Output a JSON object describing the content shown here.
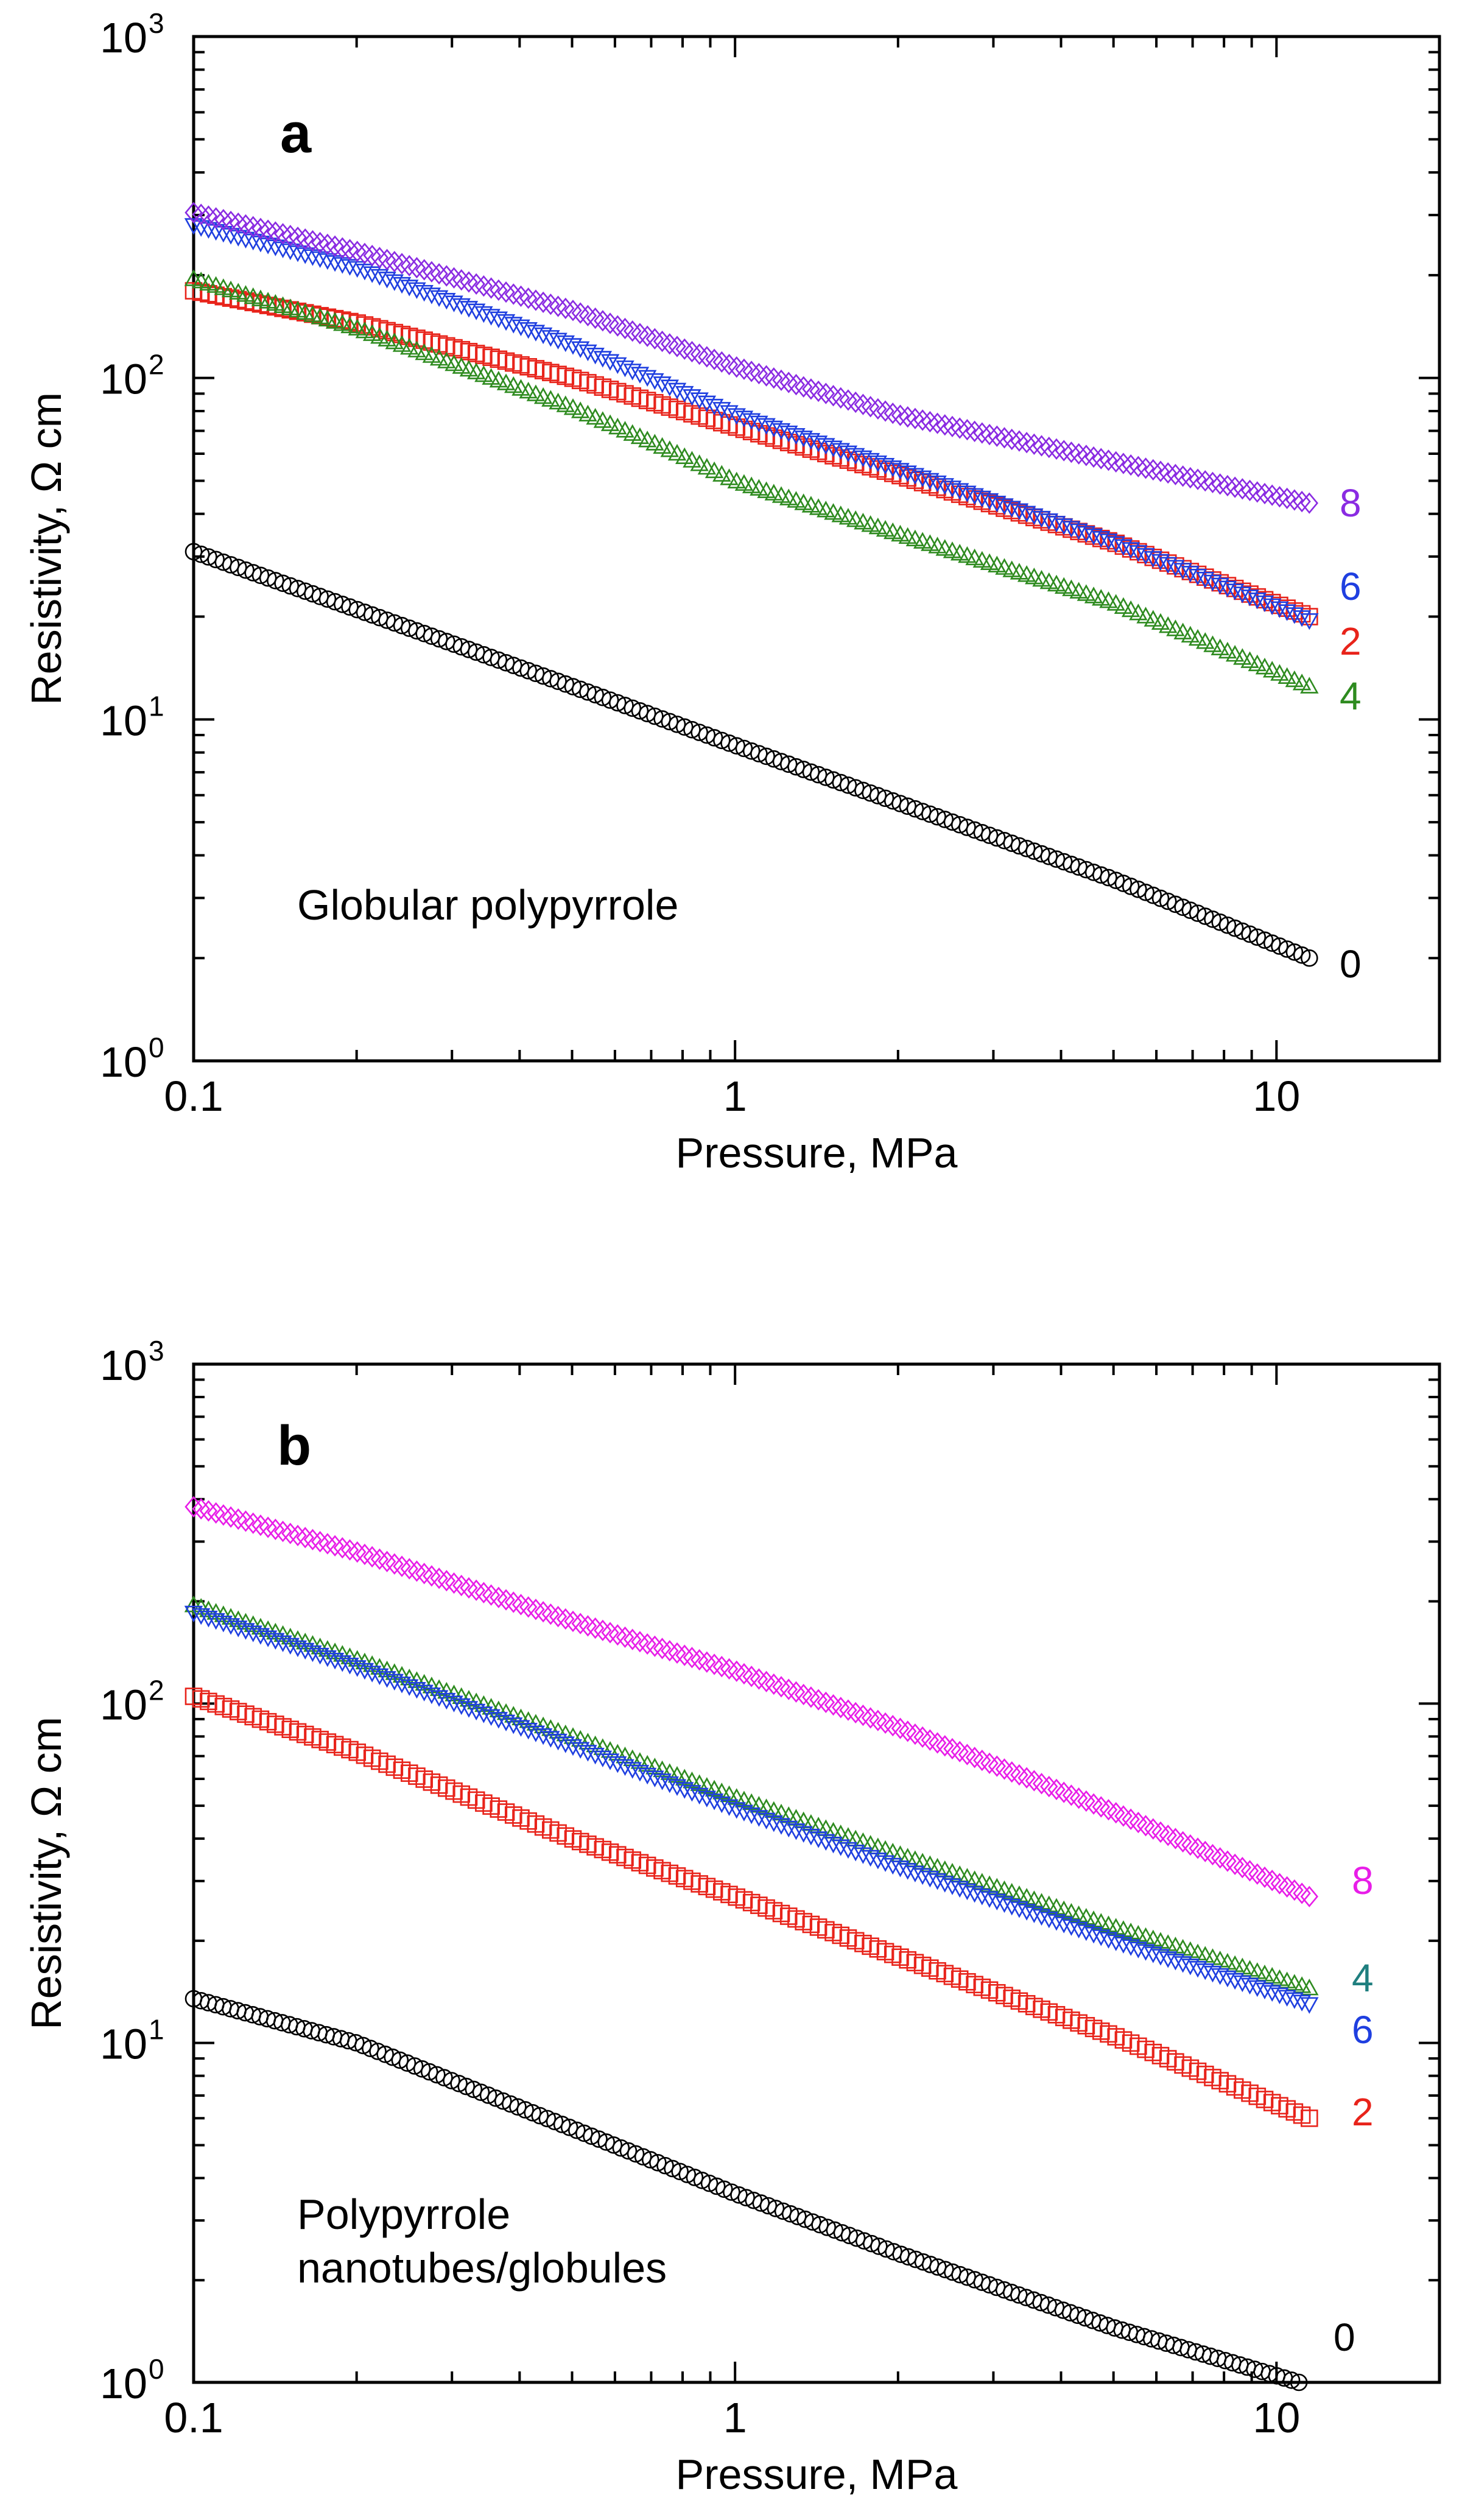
{
  "chart_data": [
    {
      "type": "scatter",
      "panel": "a",
      "title": "",
      "annotation": "Globular polypyrrole",
      "xlabel": "Pressure, MPa",
      "ylabel": "Resistivity, Ω cm",
      "xscale": "log",
      "yscale": "log",
      "xlim": [
        0.1,
        20
      ],
      "ylim": [
        1,
        1000
      ],
      "x_ticks": [
        {
          "value": 0.1,
          "label": "0.1"
        },
        {
          "value": 1,
          "label": "1"
        },
        {
          "value": 10,
          "label": "10"
        }
      ],
      "y_ticks": [
        {
          "value": 1,
          "base": "10",
          "exp": "0"
        },
        {
          "value": 10,
          "base": "10",
          "exp": "1"
        },
        {
          "value": 100,
          "base": "10",
          "exp": "2"
        },
        {
          "value": 1000,
          "base": "10",
          "exp": "3"
        }
      ],
      "grid": false,
      "series": [
        {
          "name": "0",
          "label": "0",
          "color": "#000000",
          "marker": "circle",
          "x": [
            0.1,
            0.2,
            0.5,
            1,
            2,
            5,
            11.5
          ],
          "y": [
            31,
            21,
            12.5,
            8.4,
            5.7,
            3.4,
            2.0
          ]
        },
        {
          "name": "2",
          "label": "2",
          "color": "#e8231a",
          "marker": "square",
          "x": [
            0.1,
            0.2,
            0.5,
            1,
            2,
            5,
            11.5
          ],
          "y": [
            180,
            145,
            100,
            72,
            52,
            33,
            20
          ]
        },
        {
          "name": "4",
          "label": "4",
          "color": "#2e8b1f",
          "marker": "triangle-up",
          "x": [
            0.1,
            0.2,
            0.5,
            0.75,
            1,
            2,
            5,
            11.5
          ],
          "y": [
            195,
            140,
            82,
            62,
            50,
            35,
            22,
            12.5
          ]
        },
        {
          "name": "6",
          "label": "6",
          "color": "#1f3fe0",
          "marker": "triangle-down",
          "x": [
            0.1,
            0.2,
            0.5,
            1,
            2,
            5,
            11.5
          ],
          "y": [
            280,
            210,
            125,
            78,
            54,
            33,
            19.5
          ]
        },
        {
          "name": "8",
          "label": "8",
          "color": "#8a2be2",
          "marker": "diamond",
          "x": [
            0.1,
            0.2,
            0.5,
            1,
            2,
            5,
            11.5
          ],
          "y": [
            305,
            235,
            158,
            108,
            78,
            57,
            43
          ]
        }
      ]
    },
    {
      "type": "scatter",
      "panel": "b",
      "title": "",
      "annotation_lines": [
        "Polypyrrole",
        "nanotubes/globules"
      ],
      "xlabel": "Pressure, MPa",
      "ylabel": "Resistivity, Ω cm",
      "xscale": "log",
      "yscale": "log",
      "xlim": [
        0.1,
        20
      ],
      "ylim": [
        1,
        1000
      ],
      "x_ticks": [
        {
          "value": 0.1,
          "label": "0.1"
        },
        {
          "value": 1,
          "label": "1"
        },
        {
          "value": 10,
          "label": "10"
        }
      ],
      "y_ticks": [
        {
          "value": 1,
          "base": "10",
          "exp": "0"
        },
        {
          "value": 10,
          "base": "10",
          "exp": "1"
        },
        {
          "value": 100,
          "base": "10",
          "exp": "2"
        },
        {
          "value": 1000,
          "base": "10",
          "exp": "3"
        }
      ],
      "grid": false,
      "series": [
        {
          "name": "0",
          "label": "0",
          "color": "#000000",
          "marker": "circle",
          "x": [
            0.1,
            0.2,
            0.5,
            1,
            2,
            5,
            11
          ],
          "y": [
            13.5,
            10,
            5.6,
            3.6,
            2.4,
            1.45,
            1.0
          ]
        },
        {
          "name": "2",
          "label": "2",
          "color": "#e8231a",
          "marker": "square",
          "x": [
            0.1,
            0.2,
            0.5,
            1,
            2,
            5,
            11.5
          ],
          "y": [
            105,
            72,
            40,
            27,
            18,
            10.5,
            6.0
          ]
        },
        {
          "name": "4",
          "label": "4",
          "color": "#2e8b1f",
          "label_color": "#1f7f7f",
          "marker": "triangle-up",
          "x": [
            0.1,
            0.2,
            0.5,
            1,
            2,
            5,
            11.5
          ],
          "y": [
            195,
            135,
            80,
            53,
            36,
            22,
            14.5
          ]
        },
        {
          "name": "6",
          "label": "6",
          "color": "#1f3fe0",
          "marker": "triangle-down",
          "x": [
            0.1,
            0.2,
            0.5,
            1,
            2,
            5,
            11.5
          ],
          "y": [
            185,
            128,
            75,
            49,
            33,
            20,
            13
          ]
        },
        {
          "name": "8",
          "label": "8",
          "color": "#e81de8",
          "marker": "diamond",
          "x": [
            0.1,
            0.2,
            0.5,
            1,
            2,
            5,
            11.5
          ],
          "y": [
            380,
            280,
            175,
            125,
            85,
            48,
            27
          ]
        }
      ]
    }
  ]
}
